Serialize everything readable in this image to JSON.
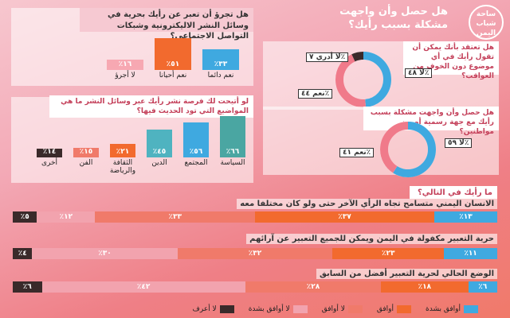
{
  "brand": {
    "line1": "ساحة",
    "line2": "شباب",
    "line3": "اليمن"
  },
  "headline": {
    "line1": "هل حصل وأن واجهت",
    "line2": "مشكلة بسبب رأيك؟"
  },
  "colors": {
    "blue": "#3fa9e0",
    "orange": "#f26a2e",
    "salmon": "#f07a6a",
    "pink": "#f2a3ae",
    "dark": "#3a2a2a",
    "teal": "#4aa6a2"
  },
  "chart_data": [
    {
      "type": "bar",
      "title": "هل تجرؤ أن تعبر عن رأيك بحرية في وسائل النشر الاليكترونية وشبكات التواصل الاجتماعي؟",
      "categories": [
        "نعم دائما",
        "نعم أحيانا",
        "لا أجرؤ"
      ],
      "values": [
        33,
        51,
        16
      ],
      "value_labels": [
        "٪٣٣",
        "٪٥١",
        "٪١٦"
      ],
      "colors": [
        "#3fa9e0",
        "#f26a2e",
        "#f7a8b2"
      ]
    },
    {
      "type": "pie",
      "title": "هل تعتقد بأنك يمكن أن تقول رأيك في أي موضوع دون الخوف من العواقب؟",
      "slices": [
        {
          "label": "نعم",
          "value": 44,
          "value_label": "نعم ٤٤٪"
        },
        {
          "label": "لا",
          "value": 48,
          "value_label": "لا ٤٨٪"
        },
        {
          "label": "لا أدري",
          "value": 7,
          "value_label": "لا أدري ٧٪"
        }
      ]
    },
    {
      "type": "bar",
      "title": "لو أتيحت لك فرصة نشر رأيك عبر وسائل النشر ما هي المواضيع التي تود الحديث فيها؟",
      "categories": [
        "السياسة",
        "المجتمع",
        "الدين",
        "الثقافة والرياضة",
        "الفن",
        "أخرى"
      ],
      "values": [
        66,
        56,
        45,
        21,
        15,
        14
      ],
      "value_labels": [
        "٪٦٦",
        "٪٥٦",
        "٪٤٥",
        "٪٢١",
        "٪١٥",
        "٪١٤"
      ],
      "colors": [
        "#4aa6a2",
        "#3fa9e0",
        "#4fb3c0",
        "#f26a2e",
        "#f07a6a",
        "#3a2a2a"
      ]
    },
    {
      "type": "pie",
      "title": "هل حصل وأن واجهت مشكلة بسبب رأيك مع جهة رسمية أو من مواطنين؟",
      "slices": [
        {
          "label": "لا",
          "value": 59,
          "value_label": "لا ٥٩٪"
        },
        {
          "label": "نعم",
          "value": 41,
          "value_label": "نعم ٤١٪"
        }
      ]
    },
    {
      "type": "bar",
      "stacked": true,
      "title": "ما رأيك في التالي؟",
      "series_names": [
        "أوافق بشدة",
        "أوافق",
        "لا أوافق",
        "لا أوافق بشدة",
        "لا أعرف"
      ],
      "statements": [
        {
          "text": "الانسان اليمني متسامح تجاه الرأي الآخر حتى ولو كان مختلفا معه",
          "values": [
            13,
            37,
            33,
            12,
            5
          ],
          "labels": [
            "٪١٣",
            "٪٣٧",
            "٪٣٣",
            "٪١٢",
            "٪٥"
          ]
        },
        {
          "text": "حرية التعبير مكفولة في اليمن ويمكن للجميع التعبير عن آرائهم",
          "values": [
            11,
            23,
            32,
            30,
            4
          ],
          "labels": [
            "٪١١",
            "٪٢٣",
            "٪٣٢",
            "٪٣٠",
            "٪٤"
          ]
        },
        {
          "text": "الوضع الحالي لحرية التعبير أفضل من السابق",
          "values": [
            6,
            18,
            28,
            42,
            6
          ],
          "labels": [
            "٪٦",
            "٪١٨",
            "٪٢٨",
            "٪٤٢",
            "٪٦"
          ]
        }
      ]
    }
  ],
  "legend": [
    "أوافق بشدة",
    "أوافق",
    "لا أوافق",
    "لا أوافق بشدة",
    "لا أعرف"
  ]
}
